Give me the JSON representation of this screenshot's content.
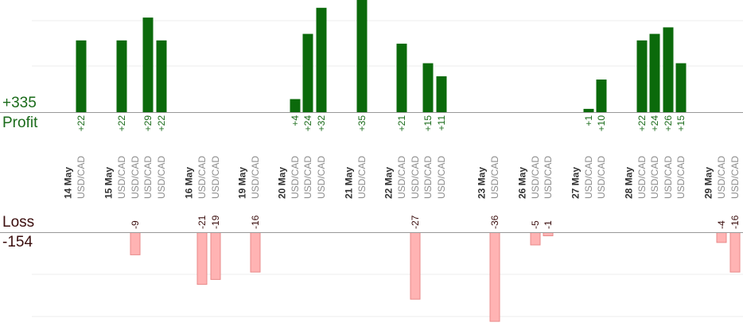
{
  "summary": {
    "profit_total": "+335",
    "profit_label": "Profit",
    "loss_label": "Loss",
    "loss_total": "-154"
  },
  "colors": {
    "profit_bar": "#0b6a0b",
    "profit_text": "#1a6b1a",
    "loss_bar": "#ffb3b3",
    "loss_bar_edge": "#e88a8a",
    "loss_text": "#3a0d0d",
    "date_text": "#333333",
    "pair_text": "#8c8c8c",
    "axis": "#999999",
    "grid": "#ececec"
  },
  "chart_data": {
    "type": "bar",
    "title": "",
    "xlabel": "",
    "ylabel": "",
    "ylim": [
      -40,
      35
    ],
    "trades": [
      {
        "label": "USD/CAD",
        "value": 22,
        "profit_label": "+22"
      },
      {
        "label": "USD/CAD",
        "value": 22,
        "profit_label": "+22"
      },
      {
        "label": "USD/CAD",
        "value": -9,
        "loss_label": "-9"
      },
      {
        "label": "USD/CAD",
        "value": 29,
        "profit_label": "+29"
      },
      {
        "label": "USD/CAD",
        "value": 22,
        "profit_label": "+22"
      },
      {
        "label": "USD/CAD",
        "value": -21,
        "loss_label": "-21"
      },
      {
        "label": "USD/CAD",
        "value": -19,
        "loss_label": "-19"
      },
      {
        "label": "USD/CAD",
        "value": -16,
        "loss_label": "-16"
      },
      {
        "label": "USD/CAD",
        "value": 4,
        "profit_label": "+4"
      },
      {
        "label": "USD/CAD",
        "value": 24,
        "profit_label": "+24"
      },
      {
        "label": "USD/CAD",
        "value": 32,
        "profit_label": "+32"
      },
      {
        "label": "USD/CAD",
        "value": 35,
        "profit_label": "+35"
      },
      {
        "label": "USD/CAD",
        "value": 21,
        "profit_label": "+21"
      },
      {
        "label": "USD/CAD",
        "value": -27,
        "loss_label": "-27"
      },
      {
        "label": "USD/CAD",
        "value": 15,
        "profit_label": "+15"
      },
      {
        "label": "USD/CAD",
        "value": 11,
        "profit_label": "+11"
      },
      {
        "label": "USD/CAD",
        "value": -36,
        "loss_label": "-36"
      },
      {
        "label": "USD/CAD",
        "value": -5,
        "loss_label": "-5"
      },
      {
        "label": "USD/CAD",
        "value": -1,
        "loss_label": "-1"
      },
      {
        "label": "USD/CAD",
        "value": 1,
        "profit_label": "+1"
      },
      {
        "label": "USD/CAD",
        "value": 10,
        "profit_label": "+10"
      },
      {
        "label": "USD/CAD",
        "value": 22,
        "profit_label": "+22"
      },
      {
        "label": "USD/CAD",
        "value": 24,
        "profit_label": "+24"
      },
      {
        "label": "USD/CAD",
        "value": 26,
        "profit_label": "+26"
      },
      {
        "label": "USD/CAD",
        "value": 15,
        "profit_label": "+15"
      },
      {
        "label": "USD/CAD",
        "value": -4,
        "loss_label": "-4"
      },
      {
        "label": "USD/CAD",
        "value": -16,
        "loss_label": "-16"
      }
    ],
    "dates": [
      {
        "label": "14 May",
        "first_trade": 0
      },
      {
        "label": "15 May",
        "first_trade": 1
      },
      {
        "label": "16 May",
        "first_trade": 5
      },
      {
        "label": "19 May",
        "first_trade": 7
      },
      {
        "label": "20 May",
        "first_trade": 8
      },
      {
        "label": "21 May",
        "first_trade": 11
      },
      {
        "label": "22 May",
        "first_trade": 12
      },
      {
        "label": "23 May",
        "first_trade": 16
      },
      {
        "label": "26 May",
        "first_trade": 17
      },
      {
        "label": "27 May",
        "first_trade": 19
      },
      {
        "label": "28 May",
        "first_trade": 21
      },
      {
        "label": "29 May",
        "first_trade": 25
      }
    ]
  }
}
